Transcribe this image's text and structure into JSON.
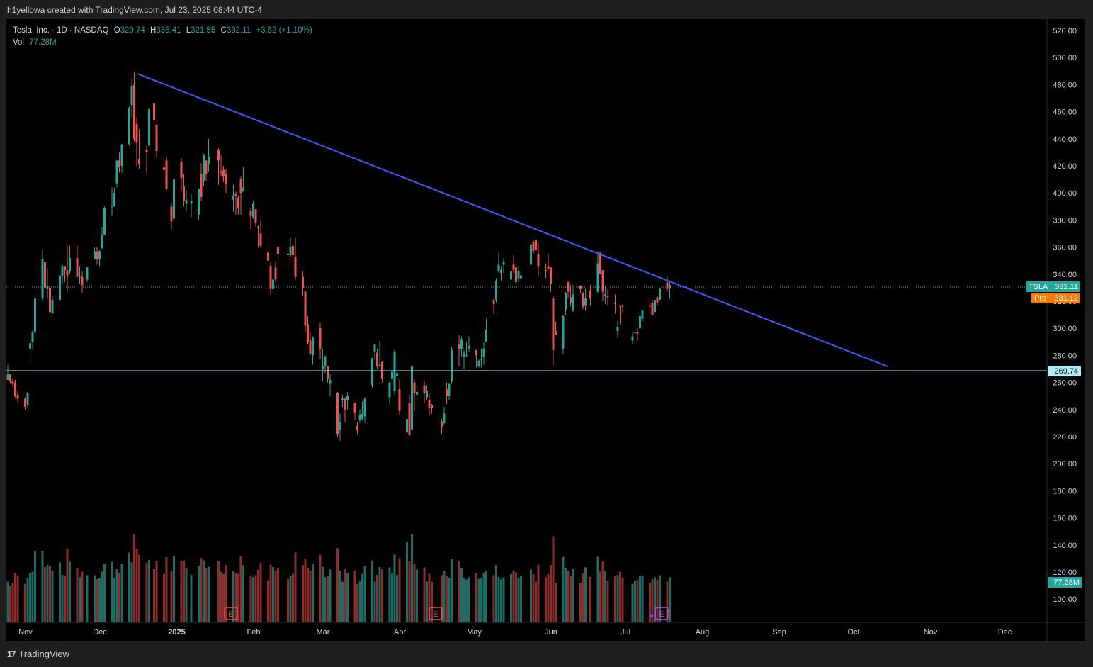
{
  "header": {
    "caption": "h1yellowa created with TradingView.com, Jul 23, 2025 08:44 UTC-4"
  },
  "footer": {
    "logo_text": "TradingView",
    "logo_mark": "17"
  },
  "legend": {
    "title": "Tesla, Inc. · 1D · NASDAQ",
    "open_label": "O",
    "open": "329.74",
    "high_label": "H",
    "high": "335.41",
    "low_label": "L",
    "low": "321.55",
    "close_label": "C",
    "close": "332.11",
    "change": "+3.62 (+1.10%)",
    "vol_label": "Vol",
    "vol": "77.28M"
  },
  "price_tags": {
    "last_symbol": "TSLA",
    "last_value": "332.11",
    "pre_label": "Pre",
    "pre_value": "331.12",
    "hline_value": "269.74",
    "volume_value": "77.28M"
  },
  "colors": {
    "up": "#26a69a",
    "down": "#ef5350",
    "vol_up": "#1f6b66",
    "vol_down": "#8b2e2c",
    "trendline": "#3d5afe",
    "hline": "#b2ebf2",
    "pre": "#f57c00",
    "earnings": "#ef5350",
    "earnings_next": "#e040fb"
  },
  "chart_data": {
    "type": "candlestick",
    "symbol": "TSLA",
    "interval": "1D",
    "xaxis_ticks": [
      "Nov",
      "Dec",
      "2025",
      "Feb",
      "Mar",
      "Apr",
      "May",
      "Jun",
      "Jul",
      "Aug",
      "Sep",
      "Oct",
      "Nov",
      "Dec"
    ],
    "yaxis_ticks": [
      "520.00",
      "500.00",
      "480.00",
      "460.00",
      "440.00",
      "420.00",
      "400.00",
      "380.00",
      "360.00",
      "340.00",
      "320.00",
      "300.00",
      "280.00",
      "260.00",
      "240.00",
      "220.00",
      "200.00",
      "180.00",
      "160.00",
      "140.00",
      "120.00",
      "100.00"
    ],
    "ylim": [
      85,
      525
    ],
    "last_close": 332.11,
    "premarket": 331.12,
    "horizontal_line": 269.74,
    "trendline": {
      "start": {
        "date": "2024-12-18",
        "price": 488.5
      },
      "end": {
        "date": "2025-10-20",
        "price": 272
      }
    },
    "earnings_markers": [
      "2025-01-29",
      "2025-04-22",
      "2025-07-23"
    ],
    "candles": [
      [
        "2024-10-28",
        262,
        273,
        262,
        266
      ],
      [
        "2024-10-29",
        266,
        264,
        259,
        261
      ],
      [
        "2024-10-30",
        261,
        263,
        257,
        259
      ],
      [
        "2024-10-31",
        260,
        262,
        249,
        250
      ],
      [
        "2024-11-01",
        251,
        254,
        245,
        248
      ],
      [
        "2024-11-04",
        248,
        249,
        240,
        242
      ],
      [
        "2024-11-05",
        243,
        253,
        241,
        252
      ],
      [
        "2024-11-06",
        285,
        290,
        275,
        289
      ],
      [
        "2024-11-07",
        290,
        299,
        285,
        297
      ],
      [
        "2024-11-08",
        297,
        325,
        295,
        322
      ],
      [
        "2024-11-11",
        322,
        358,
        320,
        351
      ],
      [
        "2024-11-12",
        349,
        345,
        323,
        330
      ],
      [
        "2024-11-13",
        329,
        344,
        322,
        331
      ],
      [
        "2024-11-14",
        330,
        329,
        310,
        312
      ],
      [
        "2024-11-15",
        311,
        324,
        311,
        321
      ],
      [
        "2024-11-18",
        321,
        348,
        320,
        339
      ],
      [
        "2024-11-19",
        339,
        347,
        332,
        346
      ],
      [
        "2024-11-20",
        346,
        346,
        334,
        343
      ],
      [
        "2024-11-21",
        343,
        361,
        327,
        339
      ],
      [
        "2024-11-22",
        342,
        361,
        340,
        352
      ],
      [
        "2024-11-25",
        352,
        361,
        338,
        338
      ],
      [
        "2024-11-26",
        338,
        346,
        333,
        338
      ],
      [
        "2024-11-27",
        338,
        342,
        326,
        332
      ],
      [
        "2024-11-29",
        336,
        345,
        334,
        345
      ],
      [
        "2024-12-02",
        351,
        360,
        351,
        357
      ],
      [
        "2024-12-03",
        357,
        360,
        347,
        351
      ],
      [
        "2024-12-04",
        351,
        358,
        346,
        357
      ],
      [
        "2024-12-05",
        359,
        375,
        359,
        369
      ],
      [
        "2024-12-06",
        369,
        390,
        369,
        389
      ],
      [
        "2024-12-09",
        390,
        404,
        383,
        390
      ],
      [
        "2024-12-10",
        390,
        404,
        390,
        400
      ],
      [
        "2024-12-11",
        407,
        424,
        404,
        424
      ],
      [
        "2024-12-12",
        424,
        430,
        415,
        419
      ],
      [
        "2024-12-13",
        420,
        436,
        415,
        436
      ],
      [
        "2024-12-16",
        436,
        464,
        435,
        463
      ],
      [
        "2024-12-17",
        465,
        484,
        456,
        479
      ],
      [
        "2024-12-18",
        480,
        489,
        438,
        440
      ],
      [
        "2024-12-19",
        451,
        456,
        420,
        437
      ],
      [
        "2024-12-20",
        425,
        447,
        418,
        421
      ],
      [
        "2024-12-23",
        432,
        435,
        415,
        430
      ],
      [
        "2024-12-24",
        435,
        463,
        433,
        462
      ],
      [
        "2024-12-26",
        466,
        466,
        446,
        454
      ],
      [
        "2024-12-27",
        450,
        451,
        426,
        431
      ],
      [
        "2024-12-30",
        419,
        427,
        415,
        417
      ],
      [
        "2024-12-31",
        424,
        427,
        402,
        403
      ],
      [
        "2025-01-02",
        390,
        393,
        373,
        379
      ],
      [
        "2025-01-03",
        381,
        411,
        379,
        410
      ],
      [
        "2025-01-06",
        423,
        426,
        401,
        411
      ],
      [
        "2025-01-07",
        405,
        414,
        390,
        394
      ],
      [
        "2025-01-08",
        392,
        402,
        387,
        395
      ],
      [
        "2025-01-10",
        392,
        399,
        382,
        394
      ],
      [
        "2025-01-13",
        384,
        403,
        380,
        403
      ],
      [
        "2025-01-14",
        414,
        422,
        394,
        397
      ],
      [
        "2025-01-15",
        409,
        429,
        405,
        428
      ],
      [
        "2025-01-16",
        424,
        424,
        409,
        414
      ],
      [
        "2025-01-17",
        421,
        440,
        416,
        427
      ],
      [
        "2025-01-21",
        432,
        433,
        406,
        424
      ],
      [
        "2025-01-22",
        416,
        428,
        412,
        415
      ],
      [
        "2025-01-23",
        417,
        420,
        408,
        412
      ],
      [
        "2025-01-24",
        414,
        418,
        400,
        407
      ],
      [
        "2025-01-27",
        395,
        406,
        386,
        398
      ],
      [
        "2025-01-28",
        399,
        401,
        384,
        398
      ],
      [
        "2025-01-29",
        396,
        398,
        384,
        389
      ],
      [
        "2025-01-30",
        410,
        412,
        384,
        400
      ],
      [
        "2025-01-31",
        401,
        419,
        401,
        404
      ],
      [
        "2025-02-03",
        387,
        389,
        373,
        383
      ],
      [
        "2025-02-04",
        382,
        394,
        381,
        392
      ],
      [
        "2025-02-05",
        388,
        388,
        375,
        378
      ],
      [
        "2025-02-06",
        375,
        376,
        360,
        374
      ],
      [
        "2025-02-07",
        370,
        380,
        360,
        361
      ],
      [
        "2025-02-10",
        356,
        362,
        350,
        350
      ],
      [
        "2025-02-11",
        346,
        349,
        325,
        329
      ],
      [
        "2025-02-12",
        329,
        346,
        326,
        336
      ],
      [
        "2025-02-13",
        345,
        349,
        334,
        336
      ],
      [
        "2025-02-14",
        360,
        362,
        347,
        355
      ],
      [
        "2025-02-18",
        355,
        360,
        347,
        354
      ],
      [
        "2025-02-19",
        354,
        367,
        353,
        360
      ],
      [
        "2025-02-20",
        361,
        362,
        348,
        354
      ],
      [
        "2025-02-21",
        353,
        367,
        336,
        338
      ],
      [
        "2025-02-24",
        338,
        342,
        324,
        330
      ],
      [
        "2025-02-25",
        327,
        328,
        297,
        302
      ],
      [
        "2025-02-26",
        303,
        309,
        288,
        290
      ],
      [
        "2025-02-27",
        291,
        297,
        280,
        281
      ],
      [
        "2025-02-28",
        280,
        294,
        273,
        293
      ],
      [
        "2025-03-03",
        300,
        304,
        277,
        285
      ],
      [
        "2025-03-04",
        270,
        285,
        261,
        272
      ],
      [
        "2025-03-05",
        272,
        280,
        267,
        279
      ],
      [
        "2025-03-06",
        272,
        272,
        260,
        263
      ],
      [
        "2025-03-07",
        259,
        266,
        250,
        262
      ],
      [
        "2025-03-10",
        252,
        253,
        220,
        222
      ],
      [
        "2025-03-11",
        225,
        237,
        217,
        231
      ],
      [
        "2025-03-12",
        247,
        251,
        242,
        248
      ],
      [
        "2025-03-13",
        248,
        249,
        231,
        240
      ],
      [
        "2025-03-14",
        247,
        253,
        240,
        250
      ],
      [
        "2025-03-17",
        245,
        245,
        232,
        238
      ],
      [
        "2025-03-18",
        228,
        231,
        222,
        225
      ],
      [
        "2025-03-19",
        232,
        240,
        230,
        236
      ],
      [
        "2025-03-20",
        233,
        246,
        232,
        237
      ],
      [
        "2025-03-21",
        235,
        249,
        230,
        248
      ],
      [
        "2025-03-24",
        258,
        278,
        256,
        278
      ],
      [
        "2025-03-25",
        283,
        288,
        277,
        288
      ],
      [
        "2025-03-26",
        282,
        285,
        270,
        272
      ],
      [
        "2025-03-27",
        272,
        291,
        271,
        273
      ],
      [
        "2025-03-28",
        275,
        276,
        260,
        263
      ],
      [
        "2025-03-31",
        249,
        260,
        244,
        260
      ],
      [
        "2025-04-01",
        263,
        278,
        260,
        268
      ],
      [
        "2025-04-02",
        254,
        284,
        251,
        283
      ],
      [
        "2025-04-03",
        265,
        277,
        264,
        267
      ],
      [
        "2025-04-04",
        255,
        262,
        236,
        239
      ],
      [
        "2025-04-07",
        223,
        252,
        214,
        233
      ],
      [
        "2025-04-08",
        245,
        251,
        222,
        221
      ],
      [
        "2025-04-09",
        225,
        274,
        223,
        272
      ],
      [
        "2025-04-10",
        260,
        262,
        239,
        252
      ],
      [
        "2025-04-11",
        251,
        257,
        241,
        253
      ],
      [
        "2025-04-14",
        258,
        261,
        245,
        252
      ],
      [
        "2025-04-15",
        249,
        258,
        247,
        254
      ],
      [
        "2025-04-16",
        247,
        252,
        236,
        241
      ],
      [
        "2025-04-17",
        243,
        244,
        237,
        241
      ],
      [
        "2025-04-21",
        231,
        233,
        222,
        227
      ],
      [
        "2025-04-22",
        230,
        242,
        229,
        237
      ],
      [
        "2025-04-23",
        255,
        260,
        244,
        250
      ],
      [
        "2025-04-24",
        250,
        259,
        247,
        259
      ],
      [
        "2025-04-25",
        261,
        286,
        259,
        284
      ],
      [
        "2025-04-28",
        288,
        295,
        272,
        285
      ],
      [
        "2025-04-29",
        285,
        294,
        279,
        292
      ],
      [
        "2025-04-30",
        279,
        284,
        270,
        282
      ],
      [
        "2025-05-01",
        280,
        290,
        279,
        280
      ],
      [
        "2025-05-02",
        285,
        294,
        283,
        287
      ],
      [
        "2025-05-05",
        284,
        284,
        271,
        280
      ],
      [
        "2025-05-06",
        272,
        277,
        271,
        276
      ],
      [
        "2025-05-07",
        277,
        285,
        271,
        277
      ],
      [
        "2025-05-08",
        279,
        290,
        273,
        285
      ],
      [
        "2025-05-09",
        290,
        307,
        290,
        299
      ],
      [
        "2025-05-12",
        321,
        322,
        311,
        318
      ],
      [
        "2025-05-13",
        321,
        337,
        319,
        335
      ],
      [
        "2025-05-14",
        342,
        356,
        341,
        347
      ],
      [
        "2025-05-15",
        341,
        346,
        335,
        343
      ],
      [
        "2025-05-16",
        347,
        352,
        341,
        349
      ],
      [
        "2025-05-19",
        336,
        343,
        331,
        342
      ],
      [
        "2025-05-20",
        347,
        354,
        341,
        343
      ],
      [
        "2025-05-21",
        345,
        350,
        331,
        334
      ],
      [
        "2025-05-22",
        337,
        346,
        334,
        342
      ],
      [
        "2025-05-23",
        337,
        343,
        331,
        339
      ],
      [
        "2025-05-27",
        347,
        363,
        347,
        362
      ],
      [
        "2025-05-28",
        364,
        365,
        355,
        357
      ],
      [
        "2025-05-29",
        365,
        367,
        356,
        358
      ],
      [
        "2025-05-30",
        355,
        363,
        339,
        346
      ],
      [
        "2025-06-02",
        343,
        348,
        337,
        342
      ],
      [
        "2025-06-03",
        346,
        355,
        343,
        344
      ],
      [
        "2025-06-04",
        345,
        345,
        327,
        333
      ],
      [
        "2025-06-05",
        322,
        324,
        273,
        284
      ],
      [
        "2025-06-06",
        298,
        305,
        297,
        295
      ],
      [
        "2025-06-09",
        285,
        310,
        281,
        309
      ],
      [
        "2025-06-10",
        314,
        327,
        310,
        326
      ],
      [
        "2025-06-11",
        334,
        335,
        322,
        327
      ],
      [
        "2025-06-12",
        323,
        332,
        316,
        319
      ],
      [
        "2025-06-13",
        313,
        332,
        312,
        325
      ],
      [
        "2025-06-16",
        331,
        332,
        326,
        329
      ],
      [
        "2025-06-17",
        326,
        327,
        314,
        316
      ],
      [
        "2025-06-18",
        317,
        329,
        313,
        322
      ],
      [
        "2025-06-20",
        328,
        332,
        317,
        322
      ],
      [
        "2025-06-23",
        327,
        357,
        326,
        348
      ],
      [
        "2025-06-24",
        356,
        356,
        340,
        340
      ],
      [
        "2025-06-25",
        343,
        343,
        320,
        327
      ],
      [
        "2025-06-26",
        324,
        331,
        318,
        325
      ],
      [
        "2025-06-27",
        324,
        329,
        317,
        323
      ],
      [
        "2025-06-30",
        319,
        325,
        311,
        318
      ],
      [
        "2025-07-01",
        298,
        306,
        293,
        301
      ],
      [
        "2025-07-02",
        317,
        317,
        303,
        316
      ],
      [
        "2025-07-03",
        317,
        318,
        311,
        316
      ],
      [
        "2025-07-07",
        291,
        297,
        288,
        294
      ],
      [
        "2025-07-08",
        297,
        304,
        294,
        297
      ],
      [
        "2025-07-09",
        297,
        300,
        291,
        296
      ],
      [
        "2025-07-10",
        300,
        310,
        300,
        309
      ],
      [
        "2025-07-11",
        307,
        314,
        305,
        313
      ],
      [
        "2025-07-14",
        317,
        322,
        312,
        316
      ],
      [
        "2025-07-15",
        319,
        321,
        310,
        310
      ],
      [
        "2025-07-16",
        312,
        323,
        312,
        321
      ],
      [
        "2025-07-17",
        323,
        324,
        317,
        319
      ],
      [
        "2025-07-18",
        321,
        330,
        321,
        329
      ],
      [
        "2025-07-21",
        334,
        338,
        327,
        329
      ],
      [
        "2025-07-22",
        330,
        335,
        322,
        332
      ]
    ],
    "volume_note": "volume pane bars, relative heights, 77.28M last"
  }
}
